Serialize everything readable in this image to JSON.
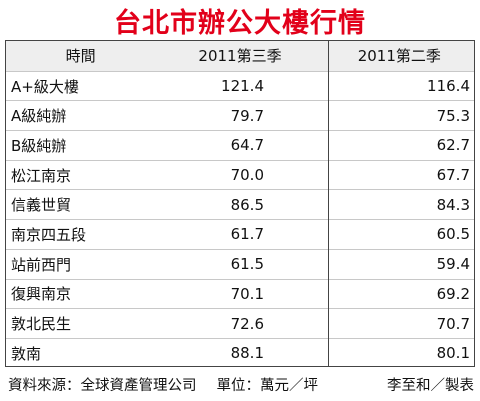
{
  "title": "台北市辦公大樓行情",
  "table": {
    "headers": [
      "時間",
      "2011第三季",
      "2011第二季"
    ],
    "rows": [
      {
        "area": "A+級大樓",
        "q3": "121.4",
        "q2": "116.4"
      },
      {
        "area": "A級純辦",
        "q3": "79.7",
        "q2": "75.3"
      },
      {
        "area": "B級純辦",
        "q3": "64.7",
        "q2": "62.7"
      },
      {
        "area": "松江南京",
        "q3": "70.0",
        "q2": "67.7"
      },
      {
        "area": "信義世貿",
        "q3": "86.5",
        "q2": "84.3"
      },
      {
        "area": "南京四五段",
        "q3": "61.7",
        "q2": "60.5"
      },
      {
        "area": "站前西門",
        "q3": "61.5",
        "q2": "59.4"
      },
      {
        "area": "復興南京",
        "q3": "70.1",
        "q2": "69.2"
      },
      {
        "area": "敦北民生",
        "q3": "72.6",
        "q2": "70.7"
      },
      {
        "area": "敦南",
        "q3": "88.1",
        "q2": "80.1"
      }
    ]
  },
  "footer": {
    "source": "資料來源：全球資產管理公司",
    "unit": "單位：萬元／坪",
    "credit": "李至和／製表"
  },
  "colors": {
    "title": "#e2001a",
    "header_bg": "#eeeeee"
  }
}
